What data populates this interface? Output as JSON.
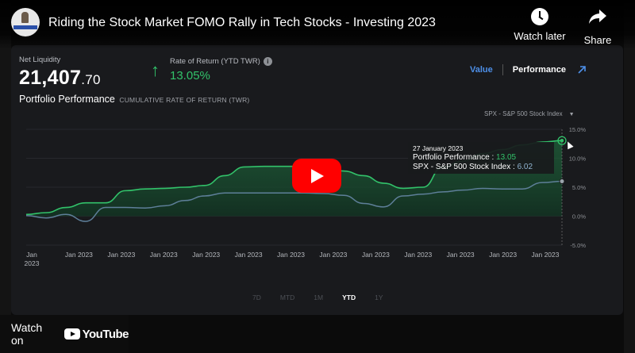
{
  "video": {
    "title": "Riding the Stock Market FOMO Rally in Tech Stocks - Investing 2023",
    "watch_later_label": "Watch later",
    "share_label": "Share",
    "watch_on_label": "Watch on",
    "youtube_label": "YouTube"
  },
  "portfolio": {
    "net_liquidity_label": "Net Liquidity",
    "net_liquidity_int": "21,407",
    "net_liquidity_dec": ".70",
    "ror_label": "Rate of Return (YTD TWR)",
    "ror_value": "13.05%",
    "tab_value": "Value",
    "tab_performance": "Performance",
    "section_title": "Portfolio Performance",
    "section_subtitle": "CUMULATIVE RATE OF RETURN (TWR)",
    "benchmark_select": "SPX - S&P 500 Stock Index"
  },
  "tooltip": {
    "date": "27 January 2023",
    "portfolio_label": "Portfolio Performance : ",
    "portfolio_value": "13.05",
    "spx_label": "SPX - S&P 500 Stock Index : ",
    "spx_value": "6.02"
  },
  "ranges": [
    "7D",
    "MTD",
    "1M",
    "YTD",
    "1Y"
  ],
  "active_range": "YTD",
  "colors": {
    "portfolio": "#32c26a",
    "benchmark": "#5e7f99",
    "accent": "#4d8fe8",
    "play": "#ff0000"
  },
  "chart_data": {
    "type": "line",
    "x_tick_labels": [
      "Jan\n2023",
      "Jan 2023",
      "Jan 2023",
      "Jan 2023",
      "Jan 2023",
      "Jan 2023",
      "Jan 2023",
      "Jan 2023",
      "Jan 2023",
      "Jan 2023",
      "Jan 2023",
      "Jan 2023",
      "Jan 2023"
    ],
    "y_tick_labels": [
      "15.0%",
      "10.0%",
      "5.0%",
      "0.0%",
      "-5.0%"
    ],
    "ylim": [
      -5,
      15
    ],
    "grid": true,
    "series": [
      {
        "name": "Portfolio Performance",
        "values": [
          0.3,
          0.6,
          1.5,
          2.3,
          2.3,
          4.4,
          4.7,
          4.8,
          5.0,
          5.3,
          7.0,
          8.5,
          8.6,
          8.6,
          8.6,
          8.3,
          7.8,
          7.0,
          5.7,
          4.8,
          5.0,
          8.5,
          9.5,
          10.8,
          11.5,
          12.3,
          12.8,
          13.05
        ]
      },
      {
        "name": "SPX - S&P 500 Stock Index",
        "values": [
          0.1,
          -0.3,
          0.3,
          -0.9,
          1.5,
          1.5,
          1.4,
          1.8,
          2.7,
          3.5,
          4.0,
          4.0,
          4.0,
          4.0,
          4.0,
          3.9,
          3.6,
          2.2,
          1.6,
          3.5,
          3.8,
          4.2,
          4.5,
          4.8,
          4.7,
          4.7,
          5.8,
          6.02
        ]
      }
    ]
  }
}
